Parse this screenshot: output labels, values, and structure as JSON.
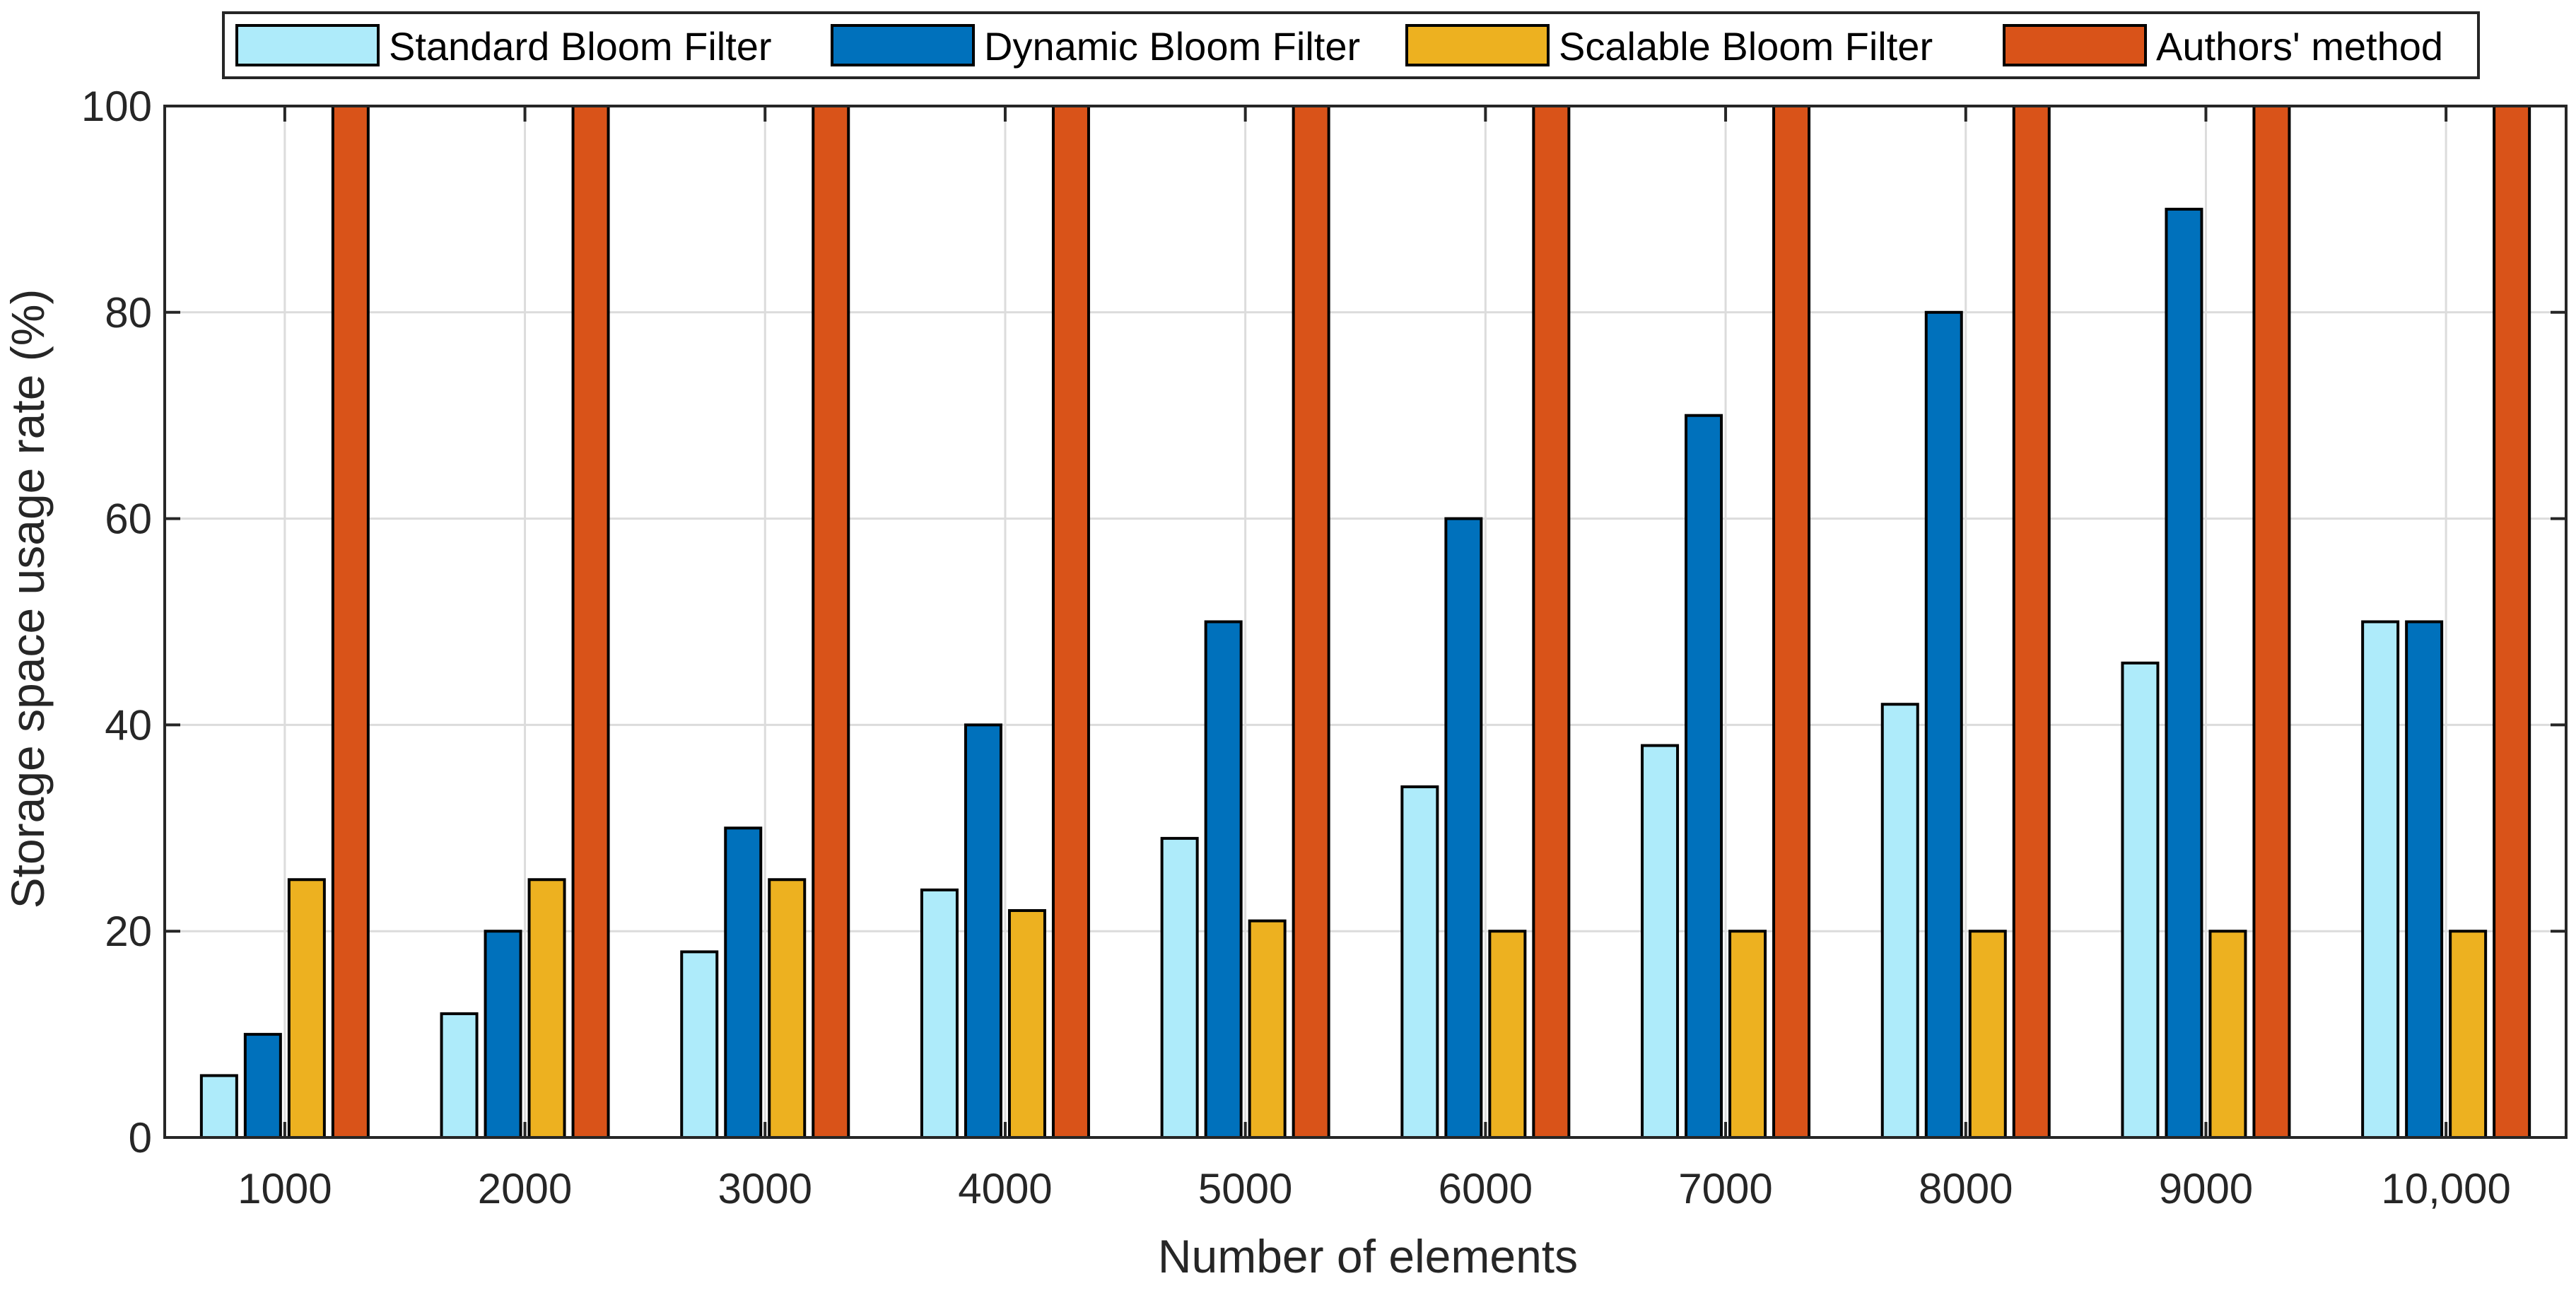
{
  "chart_data": {
    "type": "bar",
    "title": "",
    "xlabel": "Number of elements",
    "ylabel": "Storage space usage rate (%)",
    "categories": [
      "1000",
      "2000",
      "3000",
      "4000",
      "5000",
      "6000",
      "7000",
      "8000",
      "9000",
      "10,000"
    ],
    "ylim": [
      0,
      100
    ],
    "yticks": [
      0,
      20,
      40,
      60,
      80,
      100
    ],
    "grid": true,
    "legend_position": "top",
    "series": [
      {
        "name": "Standard Bloom Filter",
        "color": "#AEEBFA",
        "values": [
          6,
          12,
          18,
          24,
          29,
          34,
          38,
          42,
          46,
          50
        ]
      },
      {
        "name": "Dynamic Bloom Filter",
        "color": "#0071BC",
        "values": [
          10,
          20,
          30,
          40,
          50,
          60,
          70,
          80,
          90,
          50
        ]
      },
      {
        "name": "Scalable Bloom Filter",
        "color": "#EDB120",
        "values": [
          25,
          25,
          25,
          22,
          21,
          20,
          20,
          20,
          20,
          20
        ]
      },
      {
        "name": "Authors' method",
        "color": "#D95319",
        "values": [
          100,
          100,
          100,
          100,
          100,
          100,
          100,
          100,
          100,
          100
        ]
      }
    ]
  }
}
